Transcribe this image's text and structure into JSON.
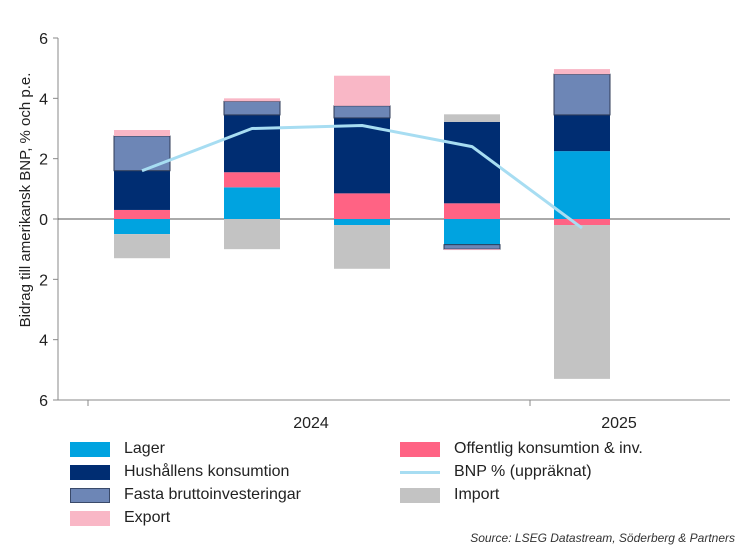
{
  "chart_data": {
    "type": "bar",
    "stacked": true,
    "title": "",
    "ylabel": "Bidrag till amerikansk BNP, % och p.e.",
    "ylim": [
      -6,
      6
    ],
    "yticks": [
      {
        "value": 6,
        "label": "6"
      },
      {
        "value": 4,
        "label": "4"
      },
      {
        "value": 2,
        "label": "2"
      },
      {
        "value": 0,
        "label": "0"
      },
      {
        "value": -2,
        "label": "2"
      },
      {
        "value": -4,
        "label": "4"
      },
      {
        "value": -6,
        "label": "6"
      }
    ],
    "quarters": 5,
    "year_labels": [
      {
        "label": "2024",
        "center": 2
      },
      {
        "label": "2025",
        "center": 4
      }
    ],
    "series": [
      {
        "key": "lager",
        "name": "Lager",
        "color": "#00A3E0",
        "values": [
          -0.5,
          1.05,
          -0.2,
          -0.85,
          2.25
        ]
      },
      {
        "key": "offentlig",
        "name": "Offentlig konsumtion & inv.",
        "color": "#FF6384",
        "values": [
          0.3,
          0.5,
          0.85,
          0.52,
          -0.2
        ]
      },
      {
        "key": "hushall",
        "name": "Hushållens konsumtion",
        "color": "#002D72",
        "values": [
          1.3,
          1.9,
          2.5,
          2.7,
          1.2
        ]
      },
      {
        "key": "fasta",
        "name": "Fasta bruttoinvesteringar",
        "color": "#6D86B6",
        "values": [
          1.15,
          0.45,
          0.4,
          -0.15,
          1.35
        ]
      },
      {
        "key": "export",
        "name": "Export",
        "color": "#F9B7C6",
        "values": [
          0.2,
          0.1,
          1.0,
          -0.03,
          0.17
        ]
      },
      {
        "key": "import",
        "name": "Import",
        "color": "#C3C3C3",
        "values": [
          -0.8,
          -1.0,
          -1.45,
          0.25,
          -5.1
        ]
      }
    ],
    "line": {
      "name": "BNP % (uppräknat)",
      "color": "#A7DDF2",
      "values": [
        1.6,
        3.0,
        3.1,
        2.4,
        -0.3
      ]
    },
    "legend": "bottom"
  },
  "source": "Source: LSEG Datastream, Söderberg & Partners"
}
